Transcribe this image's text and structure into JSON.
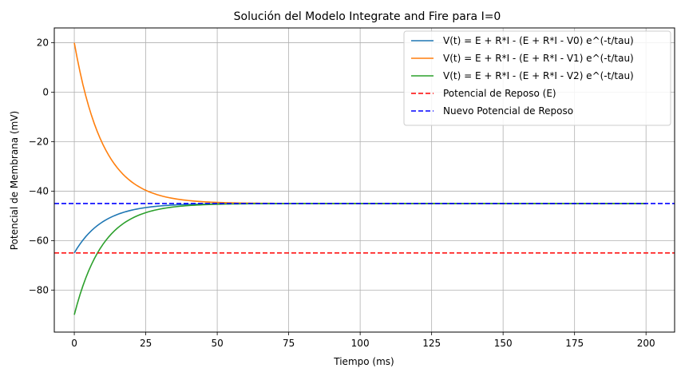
{
  "chart_data": {
    "type": "line",
    "title": "Solución del Modelo Integrate and Fire para I=0",
    "xlabel": "Tiempo (ms)",
    "ylabel": "Potencial de Membrana (mV)",
    "xlim": [
      -7,
      210
    ],
    "ylim": [
      -97,
      26
    ],
    "xticks": [
      0,
      25,
      50,
      75,
      100,
      125,
      150,
      175,
      200
    ],
    "yticks": [
      -80,
      -60,
      -40,
      -20,
      0,
      20
    ],
    "grid": true,
    "legend_position": "top-right",
    "curve_model": {
      "x_start": 0,
      "x_end": 200,
      "asymptote": -45,
      "tau": 10
    },
    "series": [
      {
        "name": "V(t) = E + R*I - (E + R*I - V0) e^(-t/tau)",
        "kind": "curve",
        "start": -65,
        "color": "#1f77b4",
        "dash": "solid"
      },
      {
        "name": "V(t) = E + R*I - (E + R*I - V1) e^(-t/tau)",
        "kind": "curve",
        "start": 20,
        "color": "#ff7f0e",
        "dash": "solid"
      },
      {
        "name": "V(t) = E + R*I - (E + R*I - V2) e^(-t/tau)",
        "kind": "curve",
        "start": -90,
        "color": "#2ca02c",
        "dash": "solid"
      },
      {
        "name": "Potencial de Reposo (E)",
        "kind": "hline",
        "y": -65,
        "color": "#ff0000",
        "dash": "dashed"
      },
      {
        "name": "Nuevo Potencial de Reposo",
        "kind": "hline",
        "y": -45,
        "color": "#0000ff",
        "dash": "dashed"
      }
    ]
  }
}
